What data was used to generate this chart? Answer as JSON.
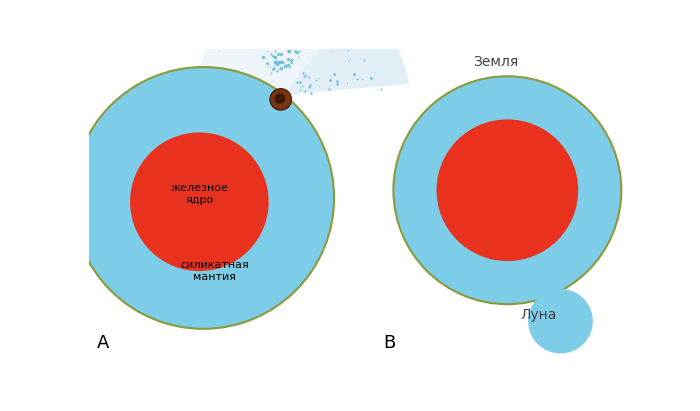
{
  "bg_color": "#ffffff",
  "light_blue": "#7DCDE8",
  "red_core": "#E8321E",
  "dark_brown": "#7A3410",
  "darker_brown": "#3D1A08",
  "border_color": "#8B9A3A",
  "ejecta_fill": "#EEF5FA",
  "ejecta_fill2": "#E0EEF5",
  "dot_color": "#5AB8D8",
  "label_A": "A",
  "label_B": "B",
  "label_luna": "Луна",
  "label_zemlya": "Земля",
  "label_core": "железное\nядро",
  "label_mantle": "силикатная\nмантия"
}
